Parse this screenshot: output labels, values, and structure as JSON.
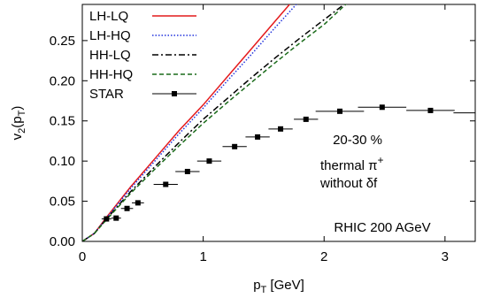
{
  "chart_data": {
    "type": "line",
    "xlabel": [
      "p",
      "T",
      " [GeV]"
    ],
    "ylabel": [
      "v",
      "2",
      "(p",
      "T",
      ")"
    ],
    "xlim": [
      0,
      3.25
    ],
    "ylim": [
      0,
      0.295
    ],
    "xticks": [
      0,
      1,
      2,
      3
    ],
    "yticks": [
      {
        "value": 0,
        "label": "0.00"
      },
      {
        "value": 0.05,
        "label": "0.05"
      },
      {
        "value": 0.1,
        "label": "0.10"
      },
      {
        "value": 0.15,
        "label": "0.15"
      },
      {
        "value": 0.2,
        "label": "0.20"
      },
      {
        "value": 0.25,
        "label": "0.25"
      }
    ],
    "legend": "upper left",
    "x": [
      0,
      0.1,
      0.2,
      0.4,
      0.6,
      0.8,
      1.0,
      1.2,
      1.4,
      1.6,
      1.8,
      2.0,
      2.2
    ],
    "series": [
      {
        "name": "LH-LQ",
        "color": "#e41a1c",
        "style": "solid",
        "values": [
          0,
          0.01,
          0.03,
          0.068,
          0.103,
          0.138,
          0.17,
          0.205,
          0.24,
          0.275,
          0.31,
          null,
          null
        ]
      },
      {
        "name": "LH-HQ",
        "color": "#2233dd",
        "style": "dotted",
        "values": [
          0,
          0.01,
          0.029,
          0.066,
          0.1,
          0.134,
          0.166,
          0.2,
          0.233,
          0.267,
          0.3,
          null,
          null
        ]
      },
      {
        "name": "HH-LQ",
        "color": "#000000",
        "style": "dash-dot",
        "values": [
          0,
          0.01,
          0.028,
          0.062,
          0.093,
          0.123,
          0.152,
          0.178,
          0.204,
          0.229,
          0.253,
          0.276,
          0.299
        ]
      },
      {
        "name": "HH-HQ",
        "color": "#1a6b1a",
        "style": "dashed",
        "values": [
          0,
          0.01,
          0.027,
          0.06,
          0.09,
          0.119,
          0.147,
          0.173,
          0.198,
          0.223,
          0.247,
          0.27,
          0.298
        ]
      }
    ],
    "points": {
      "name": "STAR",
      "color": "#000000",
      "x": [
        0.2,
        0.28,
        0.37,
        0.46,
        0.69,
        0.87,
        1.05,
        1.26,
        1.45,
        1.64,
        1.85,
        2.13,
        2.48,
        2.88,
        3.27
      ],
      "values": [
        0.028,
        0.029,
        0.041,
        0.048,
        0.071,
        0.087,
        0.1,
        0.118,
        0.13,
        0.14,
        0.152,
        0.162,
        0.167,
        0.163,
        0.16
      ],
      "xerr": [
        0.04,
        0.04,
        0.05,
        0.05,
        0.1,
        0.1,
        0.1,
        0.1,
        0.1,
        0.1,
        0.1,
        0.2,
        0.2,
        0.2,
        0.2
      ]
    },
    "annotations": [
      {
        "text": "20-30 %"
      },
      {
        "text": "thermal π",
        "sup": "+"
      },
      {
        "text": "without δf"
      },
      {
        "text": "RHIC 200 AGeV"
      }
    ]
  }
}
